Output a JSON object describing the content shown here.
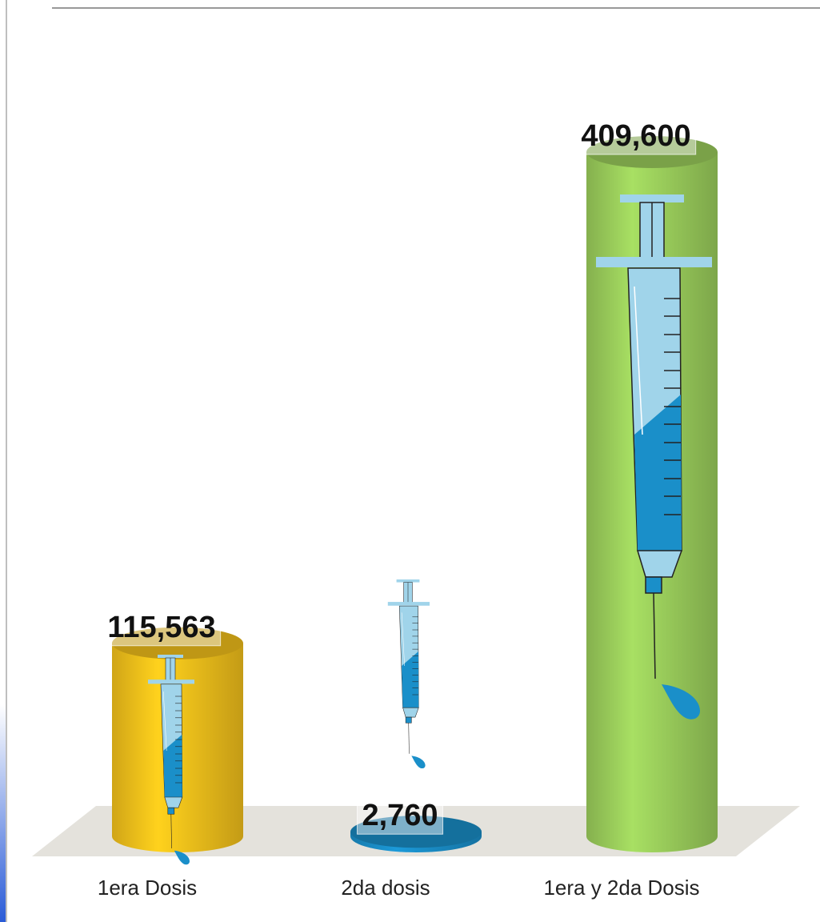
{
  "chart_data": {
    "type": "bar",
    "categories": [
      "1era Dosis",
      "2da dosis",
      "1era y 2da Dosis"
    ],
    "values": [
      115563,
      2760,
      409600
    ],
    "value_labels": [
      "115,563",
      "2,760",
      "409,600"
    ],
    "colors": [
      "#f5c21b",
      "#1a8fc9",
      "#9ccf5c"
    ]
  }
}
